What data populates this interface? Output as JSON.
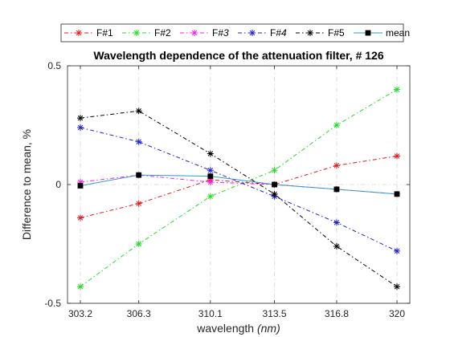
{
  "chart_data": {
    "type": "line",
    "title": "Wavelength dependence of the attenuation filter,  # 126",
    "xlabel": "wavelength",
    "xlabel_unit": "(nm)",
    "ylabel": "Difference to mean, %",
    "x": [
      303.2,
      306.3,
      310.1,
      313.5,
      316.8,
      320
    ],
    "x_tick_labels": [
      "303.2",
      "306.3",
      "310.1",
      "313.5",
      "316.8",
      "320"
    ],
    "ylim": [
      -0.5,
      0.5
    ],
    "y_ticks": [
      -0.5,
      0,
      0.5
    ],
    "y_tick_labels": [
      "-0.5",
      "0",
      "0.5"
    ],
    "grid": true,
    "legend_position": "top",
    "series": [
      {
        "name": "F#1",
        "italic_suffix": false,
        "color": "#e41a1c",
        "marker": "star",
        "values": [
          -0.14,
          -0.08,
          0.02,
          0.0,
          0.08,
          0.12
        ]
      },
      {
        "name": "F#2",
        "italic_suffix": false,
        "color": "#22dd22",
        "marker": "star",
        "values": [
          -0.43,
          -0.25,
          -0.05,
          0.06,
          0.25,
          0.4
        ]
      },
      {
        "name": "F#3",
        "italic_suffix": true,
        "color": "#ee22ee",
        "marker": "star",
        "values": [
          0.01,
          0.04,
          0.01,
          0.0,
          -0.02,
          -0.04
        ]
      },
      {
        "name": "F#4",
        "italic_suffix": true,
        "color": "#2222cc",
        "marker": "star",
        "values": [
          0.24,
          0.18,
          0.06,
          -0.05,
          -0.16,
          -0.28
        ]
      },
      {
        "name": "F#5",
        "italic_suffix": false,
        "color": "#000000",
        "marker": "star",
        "values": [
          0.28,
          0.31,
          0.13,
          -0.04,
          -0.26,
          -0.43
        ]
      },
      {
        "name": "mean",
        "italic_suffix": false,
        "color": "#3399cc",
        "marker": "square",
        "values": [
          -0.005,
          0.04,
          0.035,
          0.0,
          -0.02,
          -0.04
        ]
      }
    ]
  }
}
